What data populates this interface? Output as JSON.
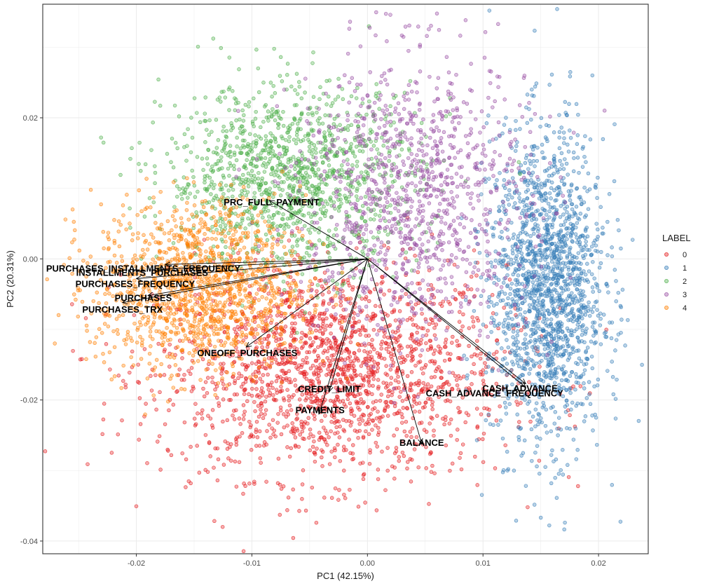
{
  "chart_data": {
    "type": "scatter",
    "title": "",
    "xlabel": "PC1 (42.15%)",
    "ylabel": "PC2 (20.31%)",
    "xlim": [
      -0.0281,
      0.0243
    ],
    "ylim": [
      -0.0418,
      0.0361
    ],
    "x_ticks": [
      -0.02,
      -0.01,
      0.0,
      0.01,
      0.02
    ],
    "x_tick_labels": [
      "-0.02",
      "-0.01",
      "0.00",
      "0.01",
      "0.02"
    ],
    "y_ticks": [
      -0.04,
      -0.02,
      0.0,
      0.02
    ],
    "y_tick_labels": [
      "-0.04",
      "-0.02",
      "0.00",
      "0.02"
    ],
    "grid": true,
    "legend": {
      "title": "LABEL",
      "position": "right",
      "entries": [
        "0",
        "1",
        "2",
        "3",
        "4"
      ]
    },
    "series": [
      {
        "name": "0",
        "color": "#E41A1C",
        "center": [
          -0.003,
          -0.016
        ],
        "spread": [
          0.0075,
          0.0075
        ],
        "count": 1900
      },
      {
        "name": "1",
        "color": "#377EB8",
        "center": [
          0.0155,
          -0.004
        ],
        "spread": [
          0.0025,
          0.011
        ],
        "count": 1700
      },
      {
        "name": "2",
        "color": "#4DAF4A",
        "center": [
          -0.0065,
          0.0115
        ],
        "spread": [
          0.0055,
          0.0065
        ],
        "count": 1300
      },
      {
        "name": "3",
        "color": "#984EA3",
        "center": [
          0.004,
          0.009
        ],
        "spread": [
          0.005,
          0.01
        ],
        "count": 1100
      },
      {
        "name": "4",
        "color": "#FF7F00",
        "center": [
          -0.0145,
          -0.004
        ],
        "spread": [
          0.0045,
          0.006
        ],
        "count": 1300
      }
    ],
    "loadings": [
      {
        "label": "PRC_FULL_PAYMENT",
        "x": -0.0085,
        "y": 0.0083
      },
      {
        "label": "PURCHASES_INSTALLMENTS_FREQUENCY",
        "x": -0.0175,
        "y": -0.0008
      },
      {
        "label": "INSTALLMENTS_PURCHASES",
        "x": -0.0182,
        "y": -0.0015
      },
      {
        "label": "PURCHASES_FREQUENCY",
        "x": -0.02,
        "y": -0.0028
      },
      {
        "label": "PURCHASES",
        "x": -0.019,
        "y": -0.0052
      },
      {
        "label": "PURCHASES_TRX",
        "x": -0.0212,
        "y": -0.0062
      },
      {
        "label": "ONEOFF_PURCHASES",
        "x": -0.0105,
        "y": -0.0125
      },
      {
        "label": "CREDIT_LIMIT",
        "x": -0.0033,
        "y": -0.0188
      },
      {
        "label": "PAYMENTS",
        "x": -0.0042,
        "y": -0.022
      },
      {
        "label": "BALANCE",
        "x": 0.0047,
        "y": -0.0262
      },
      {
        "label": "CASH_ADVANCE",
        "x": 0.0137,
        "y": -0.0177
      },
      {
        "label": "CASH_ADVANCE_FREQUENCY",
        "x": 0.0137,
        "y": -0.0182
      }
    ],
    "label_positions": {
      "PRC_FULL_PAYMENT": [
        -0.0083,
        0.0081
      ],
      "PURCHASES_INSTALLMENTS_FREQUENCY": [
        -0.0194,
        -0.0013
      ],
      "INSTALLMENTS_PURCHASES": [
        -0.0195,
        -0.0019
      ],
      "PURCHASES_FREQUENCY": [
        -0.0201,
        -0.0035
      ],
      "PURCHASES": [
        -0.0194,
        -0.0055
      ],
      "PURCHASES_TRX": [
        -0.0212,
        -0.0071
      ],
      "ONEOFF_PURCHASES": [
        -0.0104,
        -0.0133
      ],
      "CREDIT_LIMIT": [
        -0.0033,
        -0.0184
      ],
      "PAYMENTS": [
        -0.0041,
        -0.0214
      ],
      "BALANCE": [
        0.0047,
        -0.026
      ],
      "CASH_ADVANCE": [
        0.0132,
        -0.0183
      ],
      "CASH_ADVANCE_FREQUENCY": [
        0.011,
        -0.019
      ]
    }
  }
}
